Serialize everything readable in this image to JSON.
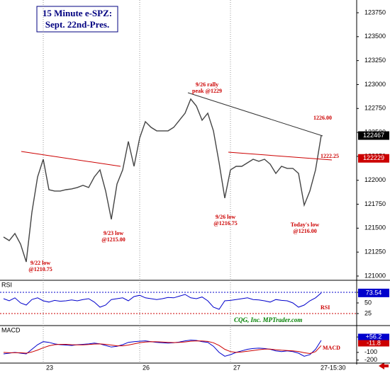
{
  "chart_data": [
    {
      "type": "line",
      "title": "15 Minute e-SPZ:",
      "subtitle": "Sept. 22nd-Pres.",
      "color": "#444444",
      "values": [
        121407,
        121370,
        121444,
        121333,
        121148,
        121666,
        122035,
        122220,
        121902,
        121888,
        121888,
        121902,
        121910,
        121925,
        121947,
        121925,
        122035,
        122109,
        121888,
        121592,
        121961,
        122109,
        122405,
        122146,
        122442,
        122612,
        122553,
        122516,
        122516,
        122516,
        122553,
        122627,
        122701,
        122849,
        122775,
        122627,
        122701,
        122516,
        122183,
        121814,
        122109,
        122146,
        122146,
        122183,
        122220,
        122198,
        122220,
        122169,
        122072,
        122146,
        122124,
        122124,
        122072,
        121740,
        121888,
        122109,
        122467
      ],
      "ylim": [
        120963,
        123846
      ],
      "yticks": [
        121000,
        121250,
        121500,
        121750,
        122000,
        122250,
        122500,
        122750,
        123000,
        123250,
        123500,
        123750
      ],
      "xticks": [
        {
          "value": 7,
          "label": "23"
        },
        {
          "value": 24,
          "label": "26"
        },
        {
          "value": 40,
          "label": "27"
        }
      ],
      "x_end_label": "27-15:30",
      "markers": [
        {
          "value": 122467,
          "color": "#000000"
        },
        {
          "value": 122229,
          "color": "#cc0000"
        }
      ],
      "annotations": [
        {
          "lines": [
            "9/22 low",
            "@1210.75"
          ]
        },
        {
          "lines": [
            "9/23 low",
            "@1215.00"
          ]
        },
        {
          "lines": [
            "9/26 rally",
            "peak @1229"
          ]
        },
        {
          "lines": [
            "9/26 low",
            "@1216.75"
          ]
        },
        {
          "lines": [
            "Today's low",
            "@1216.00"
          ]
        },
        {
          "lines": [
            "1226.00"
          ]
        },
        {
          "lines": [
            "1222.25"
          ]
        }
      ]
    },
    {
      "type": "line",
      "title": "RSI",
      "label": "RSI",
      "color": "#0000cc",
      "values": [
        60,
        55,
        62,
        50,
        45,
        58,
        62,
        55,
        52,
        56,
        54,
        55,
        57,
        55,
        58,
        60,
        52,
        40,
        45,
        58,
        60,
        62,
        55,
        65,
        68,
        62,
        60,
        58,
        60,
        63,
        62,
        66,
        70,
        62,
        60,
        64,
        55,
        40,
        35,
        55,
        56,
        58,
        60,
        62,
        58,
        57,
        55,
        52,
        58,
        56,
        55,
        50,
        40,
        45,
        55,
        62,
        73.54
      ],
      "ylim": [
        0,
        100
      ],
      "yticks": [
        25,
        50,
        75
      ],
      "last_value": 73.54,
      "credit": "CQG, Inc. MPTrader.com"
    },
    {
      "type": "line",
      "title": "MACD",
      "label": "MACD",
      "series": [
        {
          "color": "#0000cc",
          "values": [
            -120,
            -110,
            -100,
            -110,
            -120,
            -60,
            0,
            40,
            30,
            10,
            0,
            -5,
            -10,
            0,
            5,
            10,
            20,
            10,
            -10,
            -30,
            -20,
            0,
            30,
            40,
            45,
            50,
            40,
            30,
            25,
            20,
            25,
            35,
            50,
            60,
            55,
            40,
            30,
            -20,
            -100,
            -150,
            -130,
            -100,
            -80,
            -60,
            -50,
            -45,
            -50,
            -60,
            -80,
            -90,
            -80,
            -90,
            -110,
            -150,
            -130,
            -60,
            56.2
          ],
          "last_value": {
            "value": 56.2,
            "label": "+56.2"
          }
        },
        {
          "color": "#cc0000",
          "values": [
            -100,
            -105,
            -105,
            -105,
            -110,
            -95,
            -70,
            -40,
            -15,
            0,
            5,
            5,
            0,
            -3,
            -2,
            2,
            8,
            10,
            5,
            -5,
            -15,
            -15,
            -5,
            10,
            25,
            35,
            40,
            38,
            34,
            30,
            28,
            30,
            36,
            45,
            50,
            48,
            42,
            25,
            -10,
            -60,
            -90,
            -100,
            -95,
            -85,
            -75,
            -65,
            -58,
            -58,
            -65,
            -72,
            -76,
            -80,
            -88,
            -105,
            -115,
            -90,
            -11.8
          ],
          "last_value": {
            "value": -11.8,
            "label": "-11.8"
          }
        }
      ],
      "ylim": [
        -230,
        230
      ],
      "yticks": [
        {
          "value": 100,
          "label": "+100"
        },
        -100,
        -200
      ]
    }
  ]
}
